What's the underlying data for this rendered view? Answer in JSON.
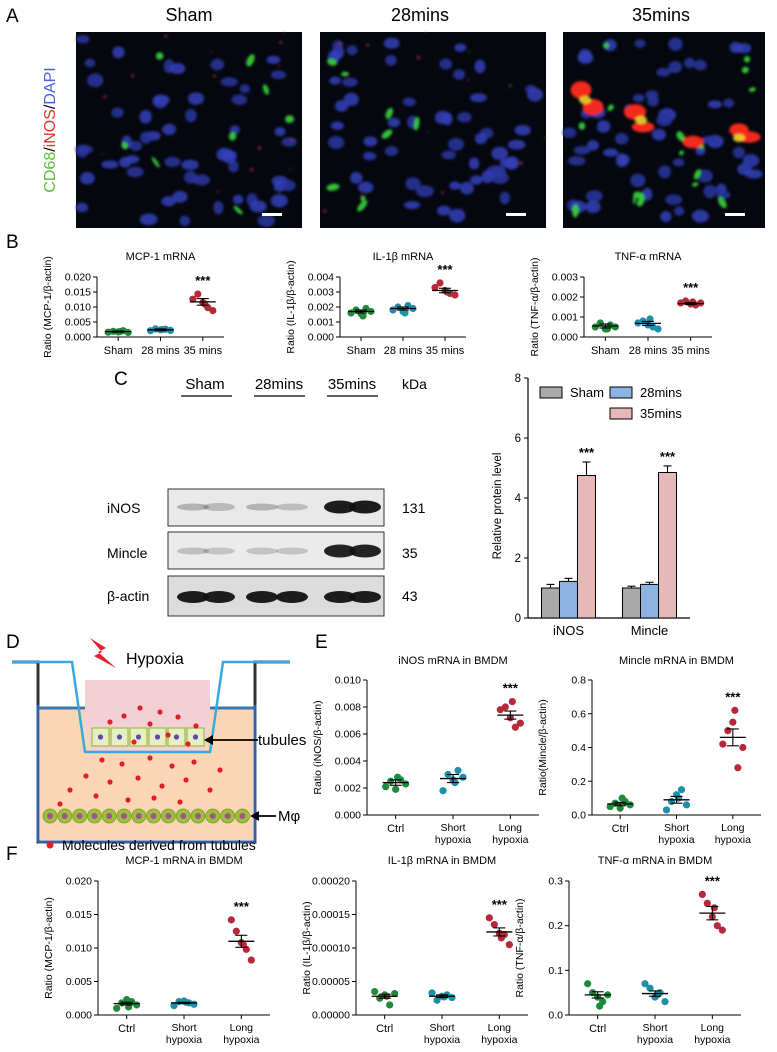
{
  "panel_letters": {
    "A": "A",
    "B": "B",
    "C": "C",
    "D": "D",
    "E": "E",
    "F": "F"
  },
  "panel_a": {
    "titles": [
      "Sham",
      "28mins",
      "35mins"
    ],
    "side_label": {
      "cd68": "CD68",
      "slash1": "/",
      "inos": "iNOS",
      "slash2": "/",
      "dapi": "DAPI"
    },
    "colors": {
      "cd68": "#5fbf3a",
      "inos": "#e0322e",
      "dapi": "#4a5fd8"
    }
  },
  "panel_c_blot": {
    "groups": [
      "Sham",
      "28mins",
      "35mins"
    ],
    "kda_header": "kDa",
    "rows": [
      {
        "name": "iNOS",
        "kda": "131"
      },
      {
        "name": "Mincle",
        "kda": "35"
      },
      {
        "name": "β-actin",
        "kda": "43"
      }
    ]
  },
  "panel_d": {
    "hypoxia": "Hypoxia",
    "tubules": "tubules",
    "mphi": "Mφ",
    "legend": "Molecules derived from tubules",
    "colors": {
      "well": "#36a9e1",
      "bottom": "#fbd6b4",
      "insert": "#f3cfd6",
      "dot": "#e21f26",
      "cell": "#9dbf3b",
      "bolt": "#e21f26"
    }
  },
  "significance": "***",
  "chart_data": [
    {
      "id": "b1",
      "type": "scatter",
      "title": "MCP-1 mRNA",
      "ylabel": "Ratio (MCP-1/β-actin)",
      "categories": [
        "Sham",
        "28 mins",
        "35 mins"
      ],
      "ylim": [
        0,
        0.02
      ],
      "ticks": [
        "0.000",
        "0.005",
        "0.010",
        "0.015",
        "0.020"
      ],
      "series": [
        {
          "name": "Sham",
          "color": "#1f8a3c",
          "values": [
            0.0016,
            0.0019,
            0.0017,
            0.0021,
            0.0015,
            0.0018
          ],
          "mean": 0.0018,
          "sem": 0.0002
        },
        {
          "name": "28 mins",
          "color": "#1f8fa7",
          "values": [
            0.0021,
            0.0027,
            0.0024,
            0.0026,
            0.0022,
            0.0025
          ],
          "mean": 0.0024,
          "sem": 0.0003
        },
        {
          "name": "35 mins",
          "color": "#b52a3a",
          "values": [
            0.0126,
            0.0143,
            0.0115,
            0.0098,
            0.0088,
            0.011
          ],
          "mean": 0.0117,
          "sem": 0.0011
        }
      ],
      "sig": [
        false,
        false,
        true
      ]
    },
    {
      "id": "b2",
      "type": "scatter",
      "title": "IL-1β mRNA",
      "ylabel": "Ratio (IL-1β/β-actin)",
      "categories": [
        "Sham",
        "28 mins",
        "35 mins"
      ],
      "ylim": [
        0,
        0.004
      ],
      "ticks": [
        "0.000",
        "0.001",
        "0.002",
        "0.003",
        "0.004"
      ],
      "series": [
        {
          "name": "Sham",
          "color": "#1f8a3c",
          "values": [
            0.0016,
            0.0018,
            0.00155,
            0.0019,
            0.0017,
            0.0014
          ],
          "mean": 0.0017,
          "sem": 0.0001
        },
        {
          "name": "28 mins",
          "color": "#1f8fa7",
          "values": [
            0.0018,
            0.002,
            0.0017,
            0.0021,
            0.0019,
            0.0016
          ],
          "mean": 0.0019,
          "sem": 0.0001
        },
        {
          "name": "35 mins",
          "color": "#b52a3a",
          "values": [
            0.0033,
            0.0036,
            0.0031,
            0.0029,
            0.0028,
            0.003
          ],
          "mean": 0.0031,
          "sem": 0.00015
        },
        {
          "name": "",
          "color": "",
          "values": []
        }
      ],
      "sig": [
        false,
        false,
        true
      ]
    },
    {
      "id": "b3",
      "type": "scatter",
      "title": "TNF-α mRNA",
      "ylabel": "Ratio (TNF-α/β-actin)",
      "categories": [
        "Sham",
        "28 mins",
        "35 mins"
      ],
      "ylim": [
        0,
        0.003
      ],
      "ticks": [
        "0.000",
        "0.001",
        "0.002",
        "0.003"
      ],
      "series": [
        {
          "name": "Sham",
          "color": "#1f8a3c",
          "values": [
            0.0005,
            0.0007,
            0.0004,
            0.0006,
            0.0005,
            0.0004
          ],
          "mean": 0.00055,
          "sem": 0.0001
        },
        {
          "name": "28 mins",
          "color": "#1f8fa7",
          "values": [
            0.0007,
            0.0008,
            0.0006,
            0.0005,
            0.0004,
            0.0009
          ],
          "mean": 0.00068,
          "sem": 0.0001
        },
        {
          "name": "35 mins",
          "color": "#b52a3a",
          "values": [
            0.0017,
            0.0018,
            0.00165,
            0.0016,
            0.0017,
            0.00175
          ],
          "mean": 0.00167,
          "sem": 5e-05
        }
      ],
      "sig": [
        false,
        false,
        true
      ]
    },
    {
      "id": "c",
      "type": "bar",
      "ylabel": "Relative protein level",
      "categories": [
        "iNOS",
        "Mincle"
      ],
      "ylim": [
        0,
        8
      ],
      "ticks": [
        "0",
        "2",
        "4",
        "6",
        "8"
      ],
      "legend_position": "top-right",
      "series": [
        {
          "name": "Sham",
          "color": "#a9a9a9",
          "values": [
            1.0,
            1.0
          ],
          "errors": [
            0.12,
            0.06
          ]
        },
        {
          "name": "28mins",
          "color": "#8db3e2",
          "values": [
            1.22,
            1.12
          ],
          "errors": [
            0.1,
            0.07
          ]
        },
        {
          "name": "35mins",
          "color": "#e6b8b7",
          "values": [
            4.75,
            4.85
          ],
          "errors": [
            0.45,
            0.22
          ]
        }
      ],
      "sig": [
        "***",
        "***"
      ]
    },
    {
      "id": "e1",
      "type": "scatter",
      "title": "iNOS mRNA in BMDM",
      "ylabel": "Ratio (iNOS/β-actin)",
      "categories": [
        "Ctrl",
        "Short hypoxia",
        "Long hypoxia"
      ],
      "ylim": [
        0,
        0.01
      ],
      "ticks": [
        "0.000",
        "0.002",
        "0.004",
        "0.006",
        "0.008",
        "0.010"
      ],
      "series": [
        {
          "name": "Ctrl",
          "color": "#1f8a3c",
          "values": [
            0.0021,
            0.0025,
            0.0019,
            0.0026,
            0.0023,
            0.0028
          ],
          "mean": 0.0024,
          "sem": 0.0002
        },
        {
          "name": "Short hypoxia",
          "color": "#1f8fa7",
          "values": [
            0.0018,
            0.003,
            0.0026,
            0.0033,
            0.0028,
            0.0024
          ],
          "mean": 0.0027,
          "sem": 0.0003
        },
        {
          "name": "Long hypoxia",
          "color": "#b52a3a",
          "values": [
            0.0078,
            0.008,
            0.0072,
            0.0065,
            0.0068,
            0.0084
          ],
          "mean": 0.0074,
          "sem": 0.0003
        }
      ],
      "sig": [
        false,
        false,
        true
      ]
    },
    {
      "id": "e2",
      "type": "scatter",
      "title": "Mincle mRNA in BMDM",
      "ylabel": "Ratio(Mincle/β-actin)",
      "categories": [
        "Ctrl",
        "Short hypoxia",
        "Long hypoxia"
      ],
      "ylim": [
        0,
        0.8
      ],
      "ticks": [
        "0.0",
        "0.2",
        "0.4",
        "0.6",
        "0.8"
      ],
      "series": [
        {
          "name": "Ctrl",
          "color": "#1f8a3c",
          "values": [
            0.05,
            0.07,
            0.04,
            0.08,
            0.06,
            0.1
          ],
          "mean": 0.065,
          "sem": 0.01
        },
        {
          "name": "Short hypoxia",
          "color": "#1f8fa7",
          "values": [
            0.03,
            0.08,
            0.12,
            0.15,
            0.06,
            0.1
          ],
          "mean": 0.09,
          "sem": 0.02
        },
        {
          "name": "Long hypoxia",
          "color": "#b52a3a",
          "values": [
            0.42,
            0.5,
            0.55,
            0.28,
            0.4,
            0.62
          ],
          "mean": 0.46,
          "sem": 0.05
        }
      ],
      "sig": [
        false,
        false,
        true
      ]
    },
    {
      "id": "f1",
      "type": "scatter",
      "title": "MCP-1 mRNA in BMDM",
      "ylabel": "Ratio (MCP-1/β-actin)",
      "categories": [
        "Ctrl",
        "Short hypoxia",
        "Long hypoxia"
      ],
      "ylim": [
        0,
        0.02
      ],
      "ticks": [
        "0.000",
        "0.005",
        "0.010",
        "0.015",
        "0.020"
      ],
      "series": [
        {
          "name": "Ctrl",
          "color": "#1f8a3c",
          "values": [
            0.001,
            0.0018,
            0.0023,
            0.002,
            0.0015,
            0.0012
          ],
          "mean": 0.0017,
          "sem": 0.0002
        },
        {
          "name": "Short hypoxia",
          "color": "#1f8fa7",
          "values": [
            0.0014,
            0.002,
            0.0021,
            0.0018,
            0.0016,
            0.0019
          ],
          "mean": 0.0018,
          "sem": 0.0001
        },
        {
          "name": "Long hypoxia",
          "color": "#b52a3a",
          "values": [
            0.0142,
            0.0125,
            0.0108,
            0.0098,
            0.0082,
            0.0105
          ],
          "mean": 0.011,
          "sem": 0.0009
        }
      ],
      "sig": [
        false,
        false,
        true
      ]
    },
    {
      "id": "f2",
      "type": "scatter",
      "title": "IL-1β mRNA in BMDM",
      "ylabel": "Ratio (IL-1β/β-actin)",
      "categories": [
        "Ctrl",
        "Short hypoxia",
        "Long hypoxia"
      ],
      "ylim": [
        0,
        0.0002
      ],
      "ticks": [
        "0.00000",
        "0.00005",
        "0.00010",
        "0.00015",
        "0.00020"
      ],
      "series": [
        {
          "name": "Ctrl",
          "color": "#1f8a3c",
          "values": [
            3.5e-05,
            2.5e-05,
            3e-05,
            1.5e-05,
            3.2e-05,
            2.8e-05
          ],
          "mean": 2.8e-05,
          "sem": 3e-06
        },
        {
          "name": "Short hypoxia",
          "color": "#1f8fa7",
          "values": [
            3.3e-05,
            2.2e-05,
            2.8e-05,
            3e-05,
            2.6e-05,
            2.7e-05
          ],
          "mean": 2.8e-05,
          "sem": 2e-06
        },
        {
          "name": "Long hypoxia",
          "color": "#b52a3a",
          "values": [
            0.000145,
            0.000135,
            0.000122,
            0.00012,
            0.000105,
            0.000115
          ],
          "mean": 0.000124,
          "sem": 6e-06
        }
      ],
      "sig": [
        false,
        false,
        true
      ]
    },
    {
      "id": "f3",
      "type": "scatter",
      "title": "TNF-α mRNA in BMDM",
      "ylabel": "Ratio (TNF-α/β-actin)",
      "categories": [
        "Ctrl",
        "Short hypoxia",
        "Long hypoxia"
      ],
      "ylim": [
        0,
        0.3
      ],
      "ticks": [
        "0.0",
        "0.1",
        "0.2",
        "0.3"
      ],
      "series": [
        {
          "name": "Ctrl",
          "color": "#1f8a3c",
          "values": [
            0.07,
            0.05,
            0.04,
            0.03,
            0.045,
            0.02
          ],
          "mean": 0.045,
          "sem": 0.007
        },
        {
          "name": "Short hypoxia",
          "color": "#1f8fa7",
          "values": [
            0.07,
            0.06,
            0.04,
            0.05,
            0.03,
            0.045
          ],
          "mean": 0.048,
          "sem": 0.006
        },
        {
          "name": "Long hypoxia",
          "color": "#b52a3a",
          "values": [
            0.27,
            0.25,
            0.22,
            0.2,
            0.19,
            0.24
          ],
          "mean": 0.228,
          "sem": 0.015
        }
      ],
      "sig": [
        false,
        false,
        true
      ]
    }
  ]
}
